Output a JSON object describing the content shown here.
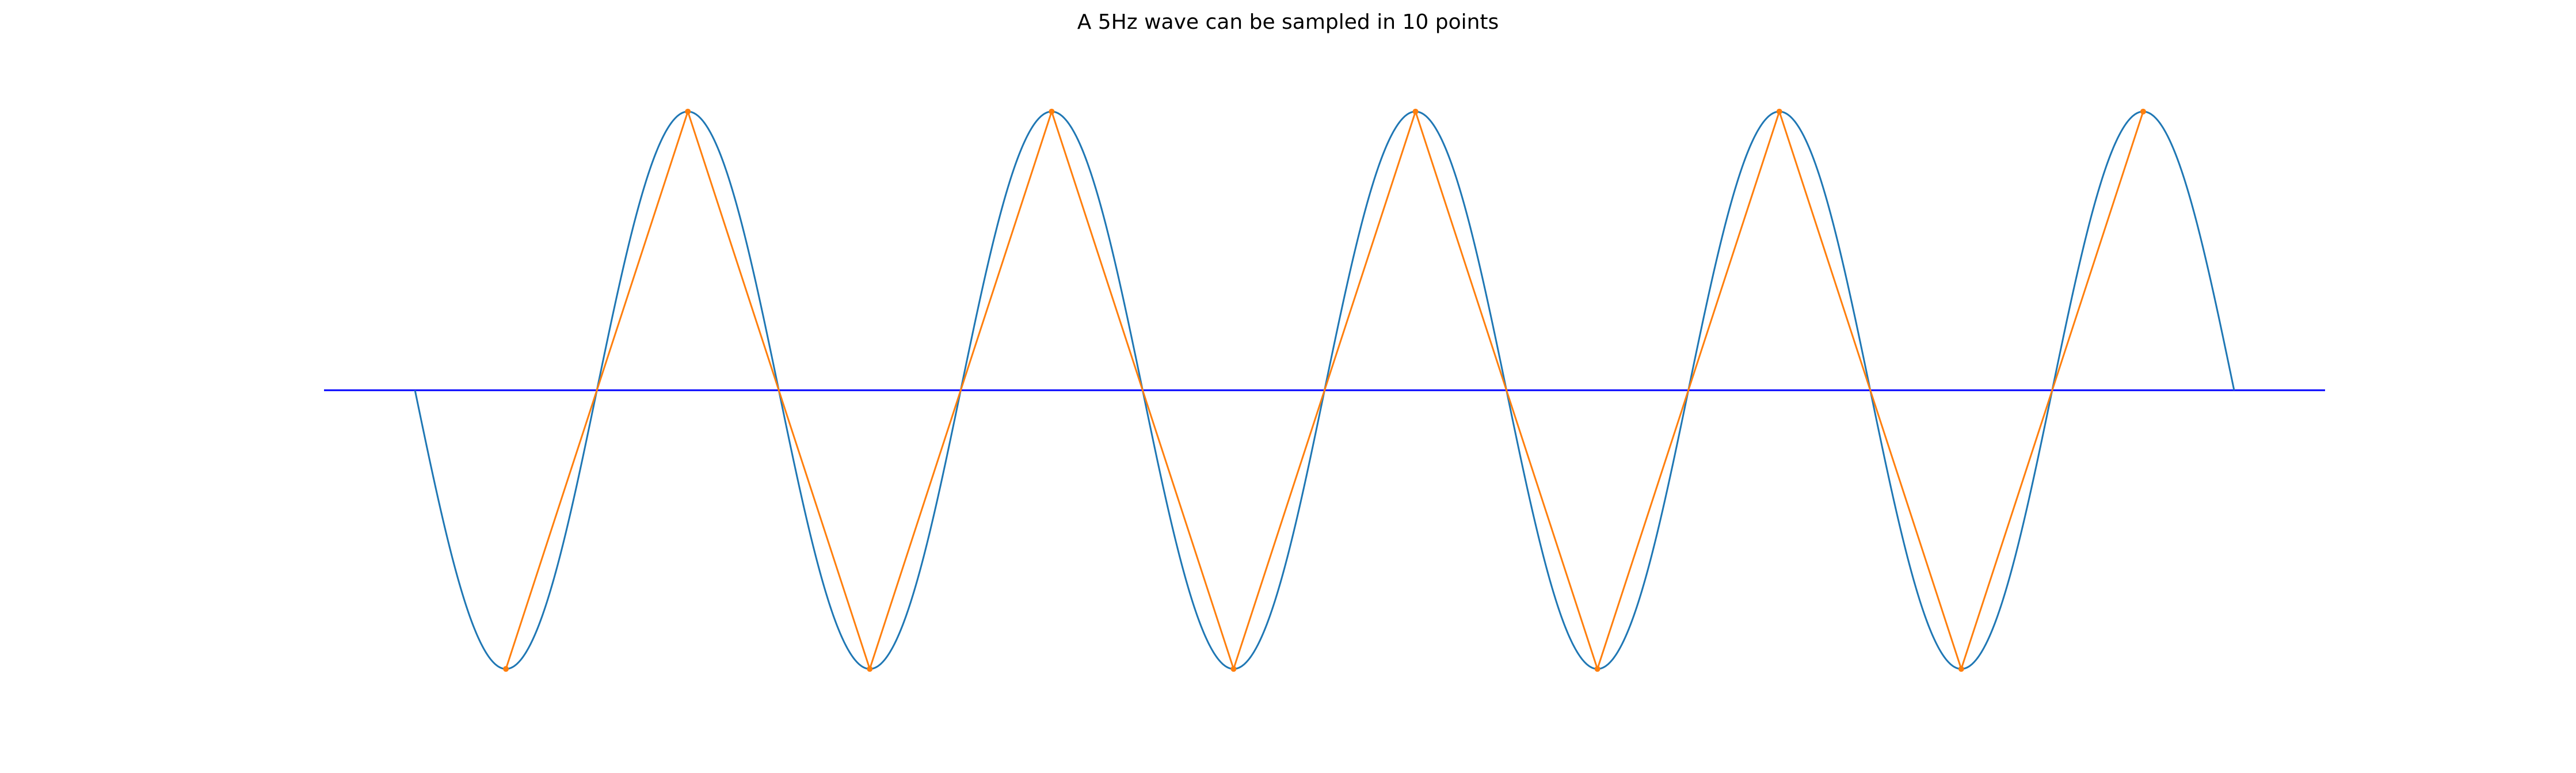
{
  "chart_data": {
    "type": "line",
    "title": "A 5Hz wave can be sampled in 10 points",
    "xlabel": "",
    "ylabel": "",
    "xlim": [
      -0.05,
      1.05
    ],
    "ylim": [
      -1.2,
      1.2
    ],
    "axes_visible": false,
    "grid": false,
    "legend": "none",
    "baseline": {
      "y": 0,
      "x_range": [
        -0.05,
        1.05
      ],
      "color": "#0000ff"
    },
    "series": [
      {
        "kind": "continuous",
        "function": "sin",
        "frequency_hz": 5,
        "phase": "negative sine",
        "x_range": [
          0,
          1
        ],
        "color": "#1f77b4"
      },
      {
        "kind": "samples",
        "x": [
          0.05,
          0.15,
          0.25,
          0.35,
          0.45,
          0.55,
          0.65,
          0.75,
          0.85,
          0.95
        ],
        "y": [
          -1,
          1,
          -1,
          1,
          -1,
          1,
          -1,
          1,
          -1,
          1
        ],
        "color": "#ff7f0e"
      }
    ]
  }
}
